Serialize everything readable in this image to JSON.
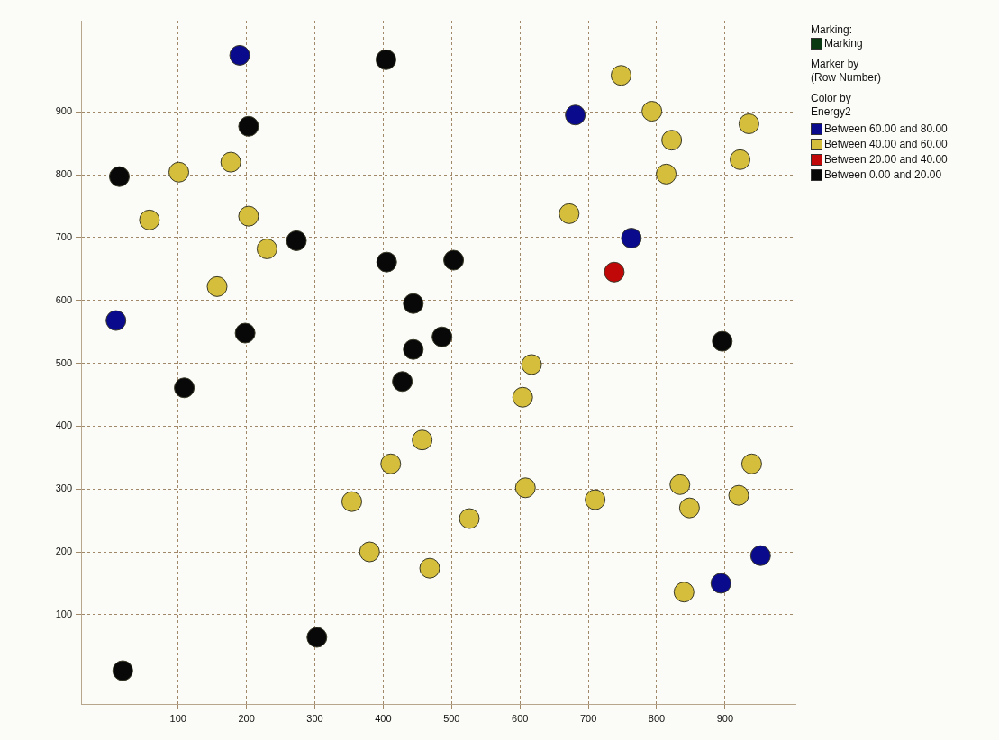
{
  "chart_data": {
    "type": "scatter",
    "legend_title": "Color by\nEnergy2",
    "annotations": [
      "Marking:",
      "Marking",
      "Marker by\n(Row Number)"
    ],
    "xlim": [
      -42,
      1003
    ],
    "ylim": [
      -42,
      1045
    ],
    "xticks": [
      100,
      200,
      300,
      400,
      500,
      600,
      700,
      800,
      900
    ],
    "yticks": [
      100,
      200,
      300,
      400,
      500,
      600,
      700,
      800,
      900
    ],
    "grid": true,
    "legend": "top right",
    "marker": "circle",
    "series": [
      {
        "name": "Between 60.00 and 80.00",
        "color": "#0a0a8c",
        "x": [
          190,
          681,
          763,
          9,
          894,
          952
        ],
        "values": [
          990,
          895,
          699,
          568,
          150,
          194
        ]
      },
      {
        "name": "Between 40.00 and 60.00",
        "color": "#d4be3c",
        "x": [
          748,
          793,
          822,
          935,
          922,
          814,
          672,
          101,
          177,
          58,
          203,
          230,
          157,
          617,
          604,
          457,
          411,
          354,
          380,
          468,
          526,
          608,
          710,
          834,
          848,
          920,
          939,
          840
        ],
        "values": [
          958,
          901,
          855,
          881,
          824,
          801,
          738,
          804,
          820,
          728,
          734,
          682,
          622,
          498,
          446,
          378,
          340,
          280,
          200,
          174,
          253,
          302,
          283,
          307,
          270,
          290,
          340,
          136
        ]
      },
      {
        "name": "Between 20.00 and 40.00",
        "color": "#c00808",
        "x": [
          738
        ],
        "values": [
          645
        ]
      },
      {
        "name": "Between 0.00 and 20.00",
        "color": "#080808",
        "x": [
          404,
          203,
          14,
          273,
          405,
          503,
          444,
          444,
          486,
          428,
          198,
          109,
          896,
          303,
          19
        ],
        "values": [
          983,
          877,
          797,
          695,
          661,
          664,
          595,
          522,
          542,
          471,
          548,
          461,
          535,
          64,
          11
        ]
      }
    ]
  }
}
